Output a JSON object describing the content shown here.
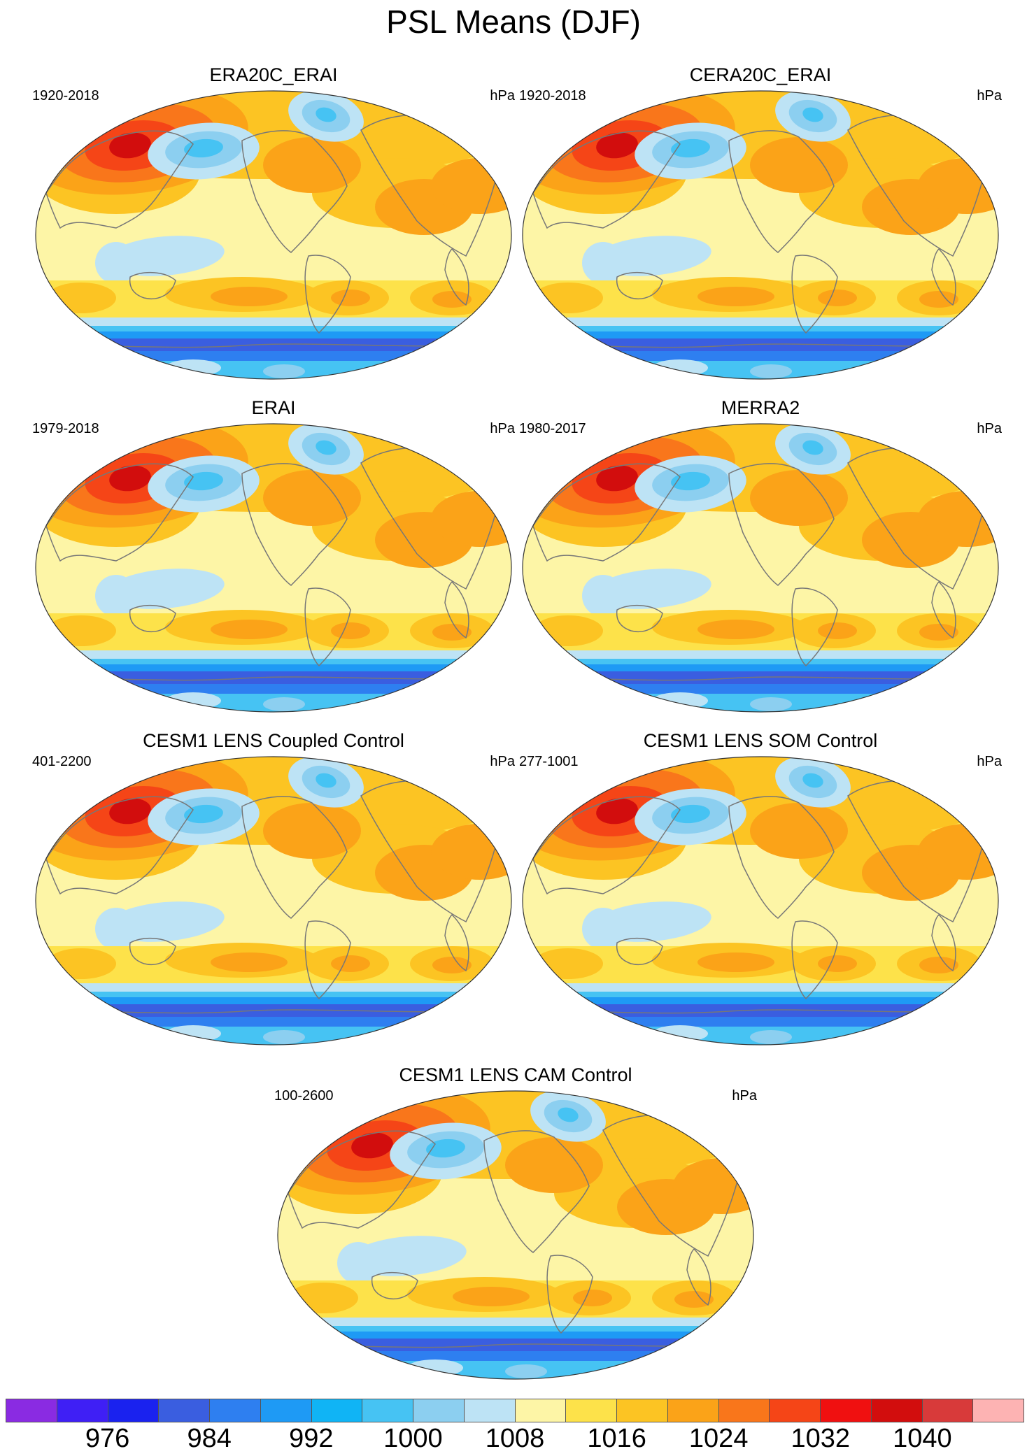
{
  "title": "PSL Means (DJF)",
  "panels": [
    {
      "title": "ERA20C_ERAI",
      "years": "1920-2018",
      "units": "hPa"
    },
    {
      "title": "CERA20C_ERAI",
      "years": "1920-2018",
      "units": "hPa"
    },
    {
      "title": "ERAI",
      "years": "1979-2018",
      "units": "hPa"
    },
    {
      "title": "MERRA2",
      "years": "1980-2017",
      "units": "hPa"
    },
    {
      "title": "CESM1 LENS Coupled Control",
      "years": "401-2200",
      "units": "hPa"
    },
    {
      "title": "CESM1 LENS SOM Control",
      "years": "277-1001",
      "units": "hPa"
    },
    {
      "title": "CESM1 LENS CAM Control",
      "years": "100-2600",
      "units": "hPa"
    }
  ],
  "colorbar": {
    "colors": [
      "#8a2be2",
      "#3f1ff5",
      "#1a22ef",
      "#3a5ee0",
      "#2e7ff0",
      "#1e9af5",
      "#10b4f5",
      "#46c3f3",
      "#8ccff0",
      "#bde3f5",
      "#fdf5a6",
      "#fde24a",
      "#fcc423",
      "#fba318",
      "#f9761b",
      "#f54517",
      "#f01010",
      "#d20d0d",
      "#d83a3a",
      "#fdb3b3"
    ],
    "tick_labels": [
      "976",
      "984",
      "992",
      "1000",
      "1008",
      "1016",
      "1024",
      "1032",
      "1040"
    ]
  },
  "map_colors": {
    "ocean_light": "#fdf5a6",
    "band_1016": "#fde24a",
    "band_1020": "#fcc423",
    "band_1024": "#fba318",
    "band_1028": "#f9761b",
    "band_1032": "#f54517",
    "band_1036": "#d20d0d",
    "low_light": "#bde3f5",
    "low_mid": "#8ccff0",
    "low_1000": "#46c3f3",
    "low_996": "#10b4f5",
    "low_992": "#1e9af5",
    "low_988": "#2e7ff0",
    "low_984": "#3a5ee0",
    "coast": "#777777"
  }
}
